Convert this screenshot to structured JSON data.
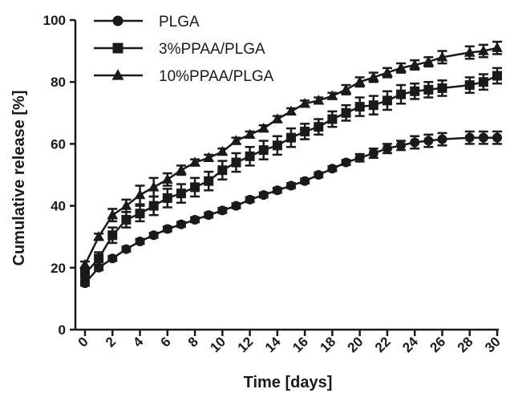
{
  "chart_data": {
    "type": "line",
    "xlabel": "Time [days]",
    "ylabel": "Cumulative release [%]",
    "xlim": [
      0,
      30
    ],
    "ylim": [
      0,
      100
    ],
    "xticks": [
      0,
      2,
      4,
      6,
      8,
      10,
      12,
      14,
      16,
      18,
      20,
      22,
      24,
      26,
      28,
      30
    ],
    "yticks": [
      0,
      20,
      40,
      60,
      80,
      100
    ],
    "grid": false,
    "legend": "top-left",
    "series": [
      {
        "name": "PLGA",
        "marker": "circle",
        "color": "#1a1a1a",
        "x": [
          0,
          1,
          2,
          3,
          4,
          5,
          6,
          7,
          8,
          9,
          10,
          11,
          12,
          13,
          14,
          15,
          16,
          17,
          18,
          19,
          20,
          21,
          22,
          23,
          24,
          25,
          26,
          28,
          29,
          30
        ],
        "values": [
          15,
          20,
          23,
          26,
          28.5,
          30.5,
          32.5,
          34,
          35.5,
          37,
          38.5,
          40,
          42,
          43.5,
          45,
          46.5,
          48,
          50,
          52,
          54,
          55.5,
          57,
          58.5,
          59.5,
          60.5,
          61,
          61.5,
          62,
          62,
          62
        ],
        "errors": [
          0.8,
          0.8,
          0.8,
          0.8,
          0.8,
          0.8,
          0.8,
          0.8,
          0.8,
          0.8,
          0.8,
          0.8,
          0.8,
          0.8,
          0.8,
          0.8,
          0.8,
          0.8,
          0.8,
          0.8,
          1.2,
          1.5,
          1.5,
          1.5,
          2,
          2,
          2,
          2,
          2,
          2
        ]
      },
      {
        "name": "3%PPAA/PLGA",
        "marker": "square",
        "color": "#1a1a1a",
        "x": [
          0,
          1,
          2,
          3,
          4,
          5,
          6,
          7,
          8,
          9,
          10,
          11,
          12,
          13,
          14,
          15,
          16,
          17,
          18,
          19,
          20,
          21,
          22,
          23,
          24,
          25,
          26,
          28,
          29,
          30
        ],
        "values": [
          18,
          23,
          30.5,
          35.5,
          37.5,
          40,
          42.5,
          44,
          46,
          48,
          51.5,
          54,
          56,
          58,
          59.5,
          62,
          64,
          65.5,
          68,
          70,
          72,
          72.5,
          74,
          76,
          77,
          77.5,
          78,
          79,
          80,
          82
        ],
        "errors": [
          1.5,
          2,
          2.5,
          2.5,
          2.5,
          3,
          3,
          3,
          3,
          3,
          3,
          3,
          3,
          3,
          3,
          3,
          2.5,
          2.5,
          2.5,
          2.5,
          3,
          3,
          3,
          3,
          2.5,
          2.5,
          2.5,
          2.5,
          2.5,
          2.5
        ]
      },
      {
        "name": "10%PPAA/PLGA",
        "marker": "triangle",
        "color": "#1a1a1a",
        "x": [
          0,
          1,
          2,
          3,
          4,
          5,
          6,
          7,
          8,
          9,
          10,
          11,
          12,
          13,
          14,
          15,
          16,
          17,
          18,
          19,
          20,
          21,
          22,
          23,
          24,
          25,
          26,
          28,
          29,
          30
        ],
        "values": [
          21,
          30,
          37,
          40,
          43.5,
          46,
          48.5,
          51.5,
          54,
          55.5,
          57.5,
          61,
          63,
          65,
          68,
          70.5,
          73,
          74,
          75.5,
          77.5,
          80,
          81.5,
          83,
          84.5,
          85.5,
          86.5,
          88,
          89.5,
          90,
          91
        ],
        "errors": [
          1,
          1,
          2,
          2,
          3,
          3,
          2,
          1.5,
          1,
          1,
          1,
          1,
          1,
          1,
          1,
          1,
          1,
          1,
          1,
          1.5,
          1.5,
          1.5,
          1.5,
          1.5,
          1.5,
          1.5,
          2,
          2,
          2,
          2
        ]
      }
    ]
  }
}
